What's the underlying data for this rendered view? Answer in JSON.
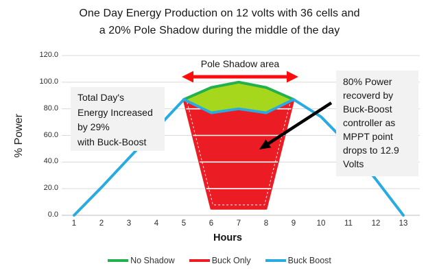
{
  "title": {
    "line1": "One Day Energy Production on 12 volts with 36 cells and",
    "line2": "a 20% Pole Shadow during the middle of the day"
  },
  "y_axis": {
    "label": "% Power",
    "ticks": [
      120,
      100,
      80,
      60,
      40,
      20,
      0
    ],
    "tick_labels": [
      "120.0",
      "100.0",
      "80.0",
      "60.0",
      "40.0",
      "20.0",
      "0.0"
    ]
  },
  "x_axis": {
    "label": "Hours",
    "ticks": [
      "1",
      "2",
      "3",
      "4",
      "5",
      "6",
      "7",
      "8",
      "9",
      "10",
      "11",
      "12",
      "13"
    ]
  },
  "annotations": {
    "pole_shadow_label": "Pole Shadow area",
    "left_box_lines": [
      "Total Day's",
      "Energy Increased",
      "by 29%",
      "with Buck-Boost"
    ],
    "right_box_lines": [
      "80% Power",
      "recoverd by",
      "Buck-Boost",
      "controller as",
      "MPPT point",
      "drops to 12.9",
      "Volts"
    ]
  },
  "legend": {
    "items": [
      {
        "label": "No Shadow",
        "color": "#22B14C"
      },
      {
        "label": "Buck Only",
        "color": "#EC1C24"
      },
      {
        "label": "Buck Boost",
        "color": "#29ABE2"
      }
    ]
  },
  "colors": {
    "no_shadow": "#22B14C",
    "shadow_fill": "#A6D71C",
    "buck_only": "#EC1C24",
    "buck_boost": "#29ABE2",
    "gridline": "#D9D9D9",
    "axis_line": "#C9C9C9",
    "annotation_bg": "#F2F2F2",
    "arrow_red": "#FB0D0D",
    "arrow_black": "#000000"
  },
  "chart_data": {
    "type": "line",
    "title": "One Day Energy Production on 12 volts with 36 cells and a 20% Pole Shadow during the middle of the day",
    "xlabel": "Hours",
    "ylabel": "% Power",
    "xlim": [
      1,
      13
    ],
    "ylim": [
      0,
      120
    ],
    "grid": true,
    "legend_position": "bottom",
    "x": [
      1,
      2,
      3,
      4,
      5,
      6,
      7,
      8,
      9,
      10,
      11,
      12,
      13
    ],
    "series": [
      {
        "name": "No Shadow",
        "color": "#22B14C",
        "x": [
          5,
          6,
          7,
          8,
          9
        ],
        "values": [
          87,
          96,
          100,
          96,
          87
        ]
      },
      {
        "name": "Buck Only",
        "color": "#EC1C24",
        "values": [
          0,
          21,
          43,
          65,
          87,
          5,
          5,
          5,
          87,
          74,
          53,
          27,
          0
        ]
      },
      {
        "name": "Buck Boost",
        "color": "#29ABE2",
        "values": [
          0,
          21,
          43,
          65,
          87,
          77,
          80,
          77,
          87,
          74,
          53,
          27,
          0
        ]
      }
    ],
    "shadow_hours": [
      5,
      9
    ],
    "regions": {
      "red_region": "Lost energy: area between Buck Boost line and Buck Only dip during pole-shadow hours 5-9, filled red",
      "green_region": "Area between No Shadow curve and Buck Boost dip during hours 5-9, filled yellow-green"
    }
  }
}
